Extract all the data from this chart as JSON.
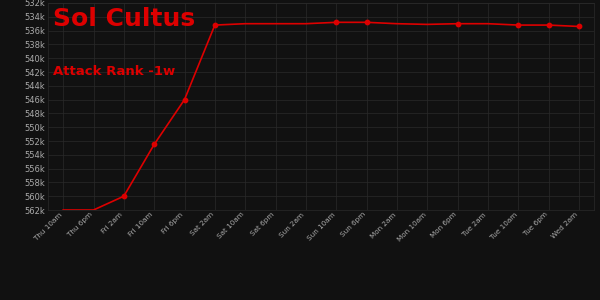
{
  "title": "Sol Cultus",
  "subtitle": "Attack Rank -1w",
  "background_color": "#111111",
  "grid_color": "#2a2a2a",
  "line_color": "#dd0000",
  "title_color": "#dd0000",
  "subtitle_color": "#dd0000",
  "tick_label_color": "#aaaaaa",
  "x_labels": [
    "Thu 10am",
    "Thu 6pm",
    "Fri 2am",
    "Fri 10am",
    "Fri 6pm",
    "Sat 2am",
    "Sat 10am",
    "Sat 6pm",
    "Sun 2am",
    "Sun 10am",
    "Sun 6pm",
    "Mon 2am",
    "Mon 10am",
    "Mon 6pm",
    "Tue 2am",
    "Tue 10am",
    "Tue 6pm",
    "Wed 2am"
  ],
  "y_min": 532000,
  "y_max": 562000,
  "y_step": 2000,
  "data_x": [
    0,
    1,
    2,
    3,
    4,
    5,
    6,
    7,
    8,
    9,
    10,
    11,
    12,
    13,
    14,
    15,
    16,
    17
  ],
  "data_y": [
    562000,
    562000,
    560000,
    552500,
    546000,
    535200,
    535000,
    535000,
    535000,
    534800,
    534800,
    535000,
    535100,
    535000,
    535000,
    535200,
    535200,
    535400
  ],
  "dot_x": [
    2,
    3,
    4,
    5,
    9,
    10,
    13,
    15,
    16,
    17
  ],
  "dot_y": [
    560000,
    552500,
    546000,
    535200,
    534800,
    534800,
    535000,
    535200,
    535200,
    535400
  ]
}
